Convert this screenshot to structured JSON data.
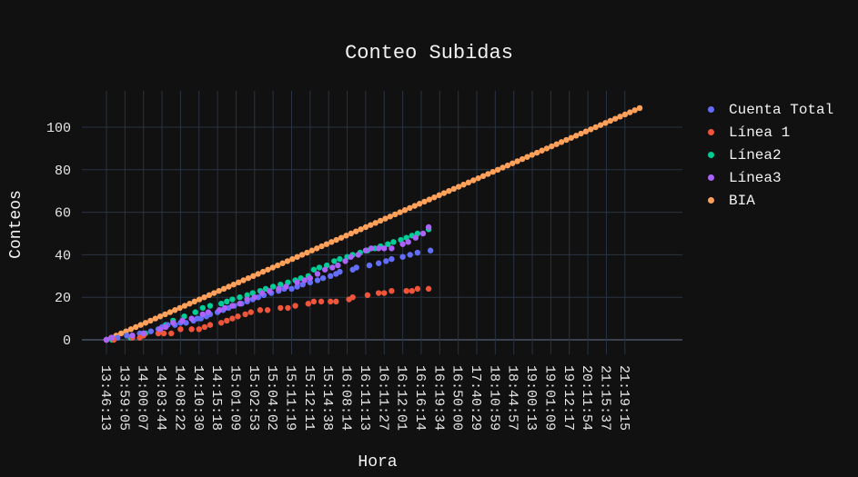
{
  "chart_data": {
    "type": "scatter",
    "title": "Conteo Subidas",
    "xlabel": "Hora",
    "ylabel": "Conteos",
    "ylim": [
      -3,
      117
    ],
    "y_ticks": [
      0,
      20,
      40,
      60,
      80,
      100
    ],
    "x_categories": [
      "13:46:13",
      "13:59:05",
      "14:00:07",
      "14:03:44",
      "14:08:22",
      "14:10:30",
      "14:15:18",
      "15:01:09",
      "15:02:53",
      "15:04:02",
      "15:11:19",
      "15:12:11",
      "15:14:38",
      "16:08:14",
      "16:11:13",
      "16:11:27",
      "16:12:01",
      "16:16:14",
      "16:19:34",
      "16:50:00",
      "17:40:29",
      "18:10:59",
      "18:44:57",
      "19:00:13",
      "19:01:09",
      "19:12:17",
      "20:11:54",
      "21:15:37",
      "21:19:15"
    ],
    "legend_position": "top-right",
    "grid": true,
    "series": [
      {
        "name": "Cuenta Total",
        "color": "#636efa",
        "points": [
          [
            0,
            0
          ],
          [
            0.3,
            1
          ],
          [
            0.6,
            1
          ],
          [
            1.1,
            2
          ],
          [
            1.4,
            2
          ],
          [
            1.8,
            3
          ],
          [
            2.0,
            3
          ],
          [
            2.4,
            4
          ],
          [
            2.8,
            5
          ],
          [
            3.0,
            6
          ],
          [
            3.3,
            7
          ],
          [
            3.7,
            7
          ],
          [
            4.0,
            8
          ],
          [
            4.3,
            8
          ],
          [
            4.7,
            9
          ],
          [
            4.9,
            10
          ],
          [
            5.1,
            10
          ],
          [
            5.4,
            11
          ],
          [
            5.6,
            12
          ],
          [
            6.0,
            13
          ],
          [
            6.3,
            14
          ],
          [
            6.6,
            15
          ],
          [
            6.9,
            16
          ],
          [
            7.3,
            17
          ],
          [
            7.6,
            18
          ],
          [
            7.9,
            19
          ],
          [
            8.2,
            20
          ],
          [
            8.5,
            21
          ],
          [
            8.9,
            22
          ],
          [
            9.3,
            23
          ],
          [
            9.6,
            24
          ],
          [
            10.0,
            24
          ],
          [
            10.3,
            25
          ],
          [
            10.6,
            26
          ],
          [
            11.0,
            27
          ],
          [
            11.4,
            28
          ],
          [
            11.7,
            29
          ],
          [
            12.1,
            30
          ],
          [
            12.4,
            31
          ],
          [
            12.6,
            32
          ],
          [
            13.3,
            33
          ],
          [
            13.5,
            34
          ],
          [
            14.2,
            35
          ],
          [
            14.7,
            36
          ],
          [
            15.1,
            37
          ],
          [
            15.4,
            38
          ],
          [
            16.0,
            39
          ],
          [
            16.4,
            40
          ],
          [
            16.8,
            41
          ],
          [
            17.5,
            42
          ]
        ]
      },
      {
        "name": "Línea 1",
        "color": "#ef553b",
        "points": [
          [
            0,
            0
          ],
          [
            0.4,
            0
          ],
          [
            1.4,
            1
          ],
          [
            1.8,
            1
          ],
          [
            2.0,
            2
          ],
          [
            2.8,
            3
          ],
          [
            3.1,
            3
          ],
          [
            3.5,
            3
          ],
          [
            4.0,
            5
          ],
          [
            4.6,
            5
          ],
          [
            5.0,
            5
          ],
          [
            5.3,
            6
          ],
          [
            5.6,
            7
          ],
          [
            6.2,
            8
          ],
          [
            6.5,
            9
          ],
          [
            6.8,
            10
          ],
          [
            7.1,
            11
          ],
          [
            7.5,
            12
          ],
          [
            7.8,
            13
          ],
          [
            8.3,
            14
          ],
          [
            8.7,
            14
          ],
          [
            9.4,
            15
          ],
          [
            9.8,
            15
          ],
          [
            10.2,
            16
          ],
          [
            10.9,
            17
          ],
          [
            11.2,
            18
          ],
          [
            11.6,
            18
          ],
          [
            12.1,
            18
          ],
          [
            12.4,
            18
          ],
          [
            13.1,
            19
          ],
          [
            13.3,
            20
          ],
          [
            14.1,
            21
          ],
          [
            14.7,
            22
          ],
          [
            15.0,
            22
          ],
          [
            15.4,
            23
          ],
          [
            16.2,
            23
          ],
          [
            16.5,
            23
          ],
          [
            16.8,
            24
          ],
          [
            17.4,
            24
          ]
        ]
      },
      {
        "name": "Línea2",
        "color": "#00cc96",
        "points": [
          [
            0,
            0
          ],
          [
            0.3,
            0
          ],
          [
            1.3,
            1
          ],
          [
            1.9,
            2
          ],
          [
            2.1,
            3
          ],
          [
            2.9,
            5
          ],
          [
            3.2,
            7
          ],
          [
            3.6,
            9
          ],
          [
            4.2,
            11
          ],
          [
            4.8,
            13
          ],
          [
            5.2,
            15
          ],
          [
            5.6,
            16
          ],
          [
            6.2,
            17
          ],
          [
            6.5,
            18
          ],
          [
            6.8,
            19
          ],
          [
            7.2,
            20
          ],
          [
            7.6,
            21
          ],
          [
            7.9,
            22
          ],
          [
            8.3,
            23
          ],
          [
            8.6,
            24
          ],
          [
            9.0,
            25
          ],
          [
            9.4,
            26
          ],
          [
            9.8,
            27
          ],
          [
            10.2,
            28
          ],
          [
            10.5,
            29
          ],
          [
            10.9,
            30
          ],
          [
            11.2,
            33
          ],
          [
            11.5,
            34
          ],
          [
            11.9,
            35
          ],
          [
            12.3,
            37
          ],
          [
            12.6,
            38
          ],
          [
            13.0,
            39
          ],
          [
            13.3,
            40
          ],
          [
            13.7,
            41
          ],
          [
            14.1,
            42
          ],
          [
            14.5,
            43
          ],
          [
            14.8,
            44
          ],
          [
            15.2,
            45
          ],
          [
            15.5,
            46
          ],
          [
            15.9,
            47
          ],
          [
            16.2,
            48
          ],
          [
            16.5,
            49
          ],
          [
            16.8,
            50
          ],
          [
            17.4,
            52
          ]
        ]
      },
      {
        "name": "Línea3",
        "color": "#ab63fa",
        "points": [
          [
            0,
            0
          ],
          [
            0.3,
            1
          ],
          [
            1.4,
            2
          ],
          [
            2.0,
            3
          ],
          [
            2.9,
            5
          ],
          [
            3.2,
            6
          ],
          [
            3.6,
            8
          ],
          [
            4.1,
            9
          ],
          [
            4.6,
            10
          ],
          [
            5.2,
            12
          ],
          [
            5.5,
            13
          ],
          [
            6.1,
            14
          ],
          [
            6.4,
            15
          ],
          [
            6.8,
            16
          ],
          [
            7.2,
            17
          ],
          [
            7.6,
            19
          ],
          [
            8.0,
            20
          ],
          [
            8.4,
            22
          ],
          [
            8.8,
            23
          ],
          [
            9.3,
            24
          ],
          [
            9.7,
            25
          ],
          [
            10.3,
            27
          ],
          [
            10.7,
            28
          ],
          [
            11.0,
            29
          ],
          [
            11.4,
            31
          ],
          [
            11.8,
            33
          ],
          [
            12.2,
            34
          ],
          [
            12.5,
            35
          ],
          [
            12.9,
            37
          ],
          [
            13.2,
            39
          ],
          [
            13.6,
            40
          ],
          [
            14.0,
            42
          ],
          [
            14.3,
            43
          ],
          [
            14.7,
            43
          ],
          [
            15.0,
            43
          ],
          [
            15.4,
            43
          ],
          [
            16.0,
            45
          ],
          [
            16.3,
            46
          ],
          [
            16.7,
            48
          ],
          [
            17.1,
            50
          ],
          [
            17.4,
            53
          ]
        ]
      },
      {
        "name": "BIA",
        "color": "#ffa15a",
        "points": []
      }
    ],
    "bia_line": {
      "x_start": 0,
      "x_end": 28.8,
      "y_start": 0,
      "y_end": 109,
      "count": 110
    }
  }
}
